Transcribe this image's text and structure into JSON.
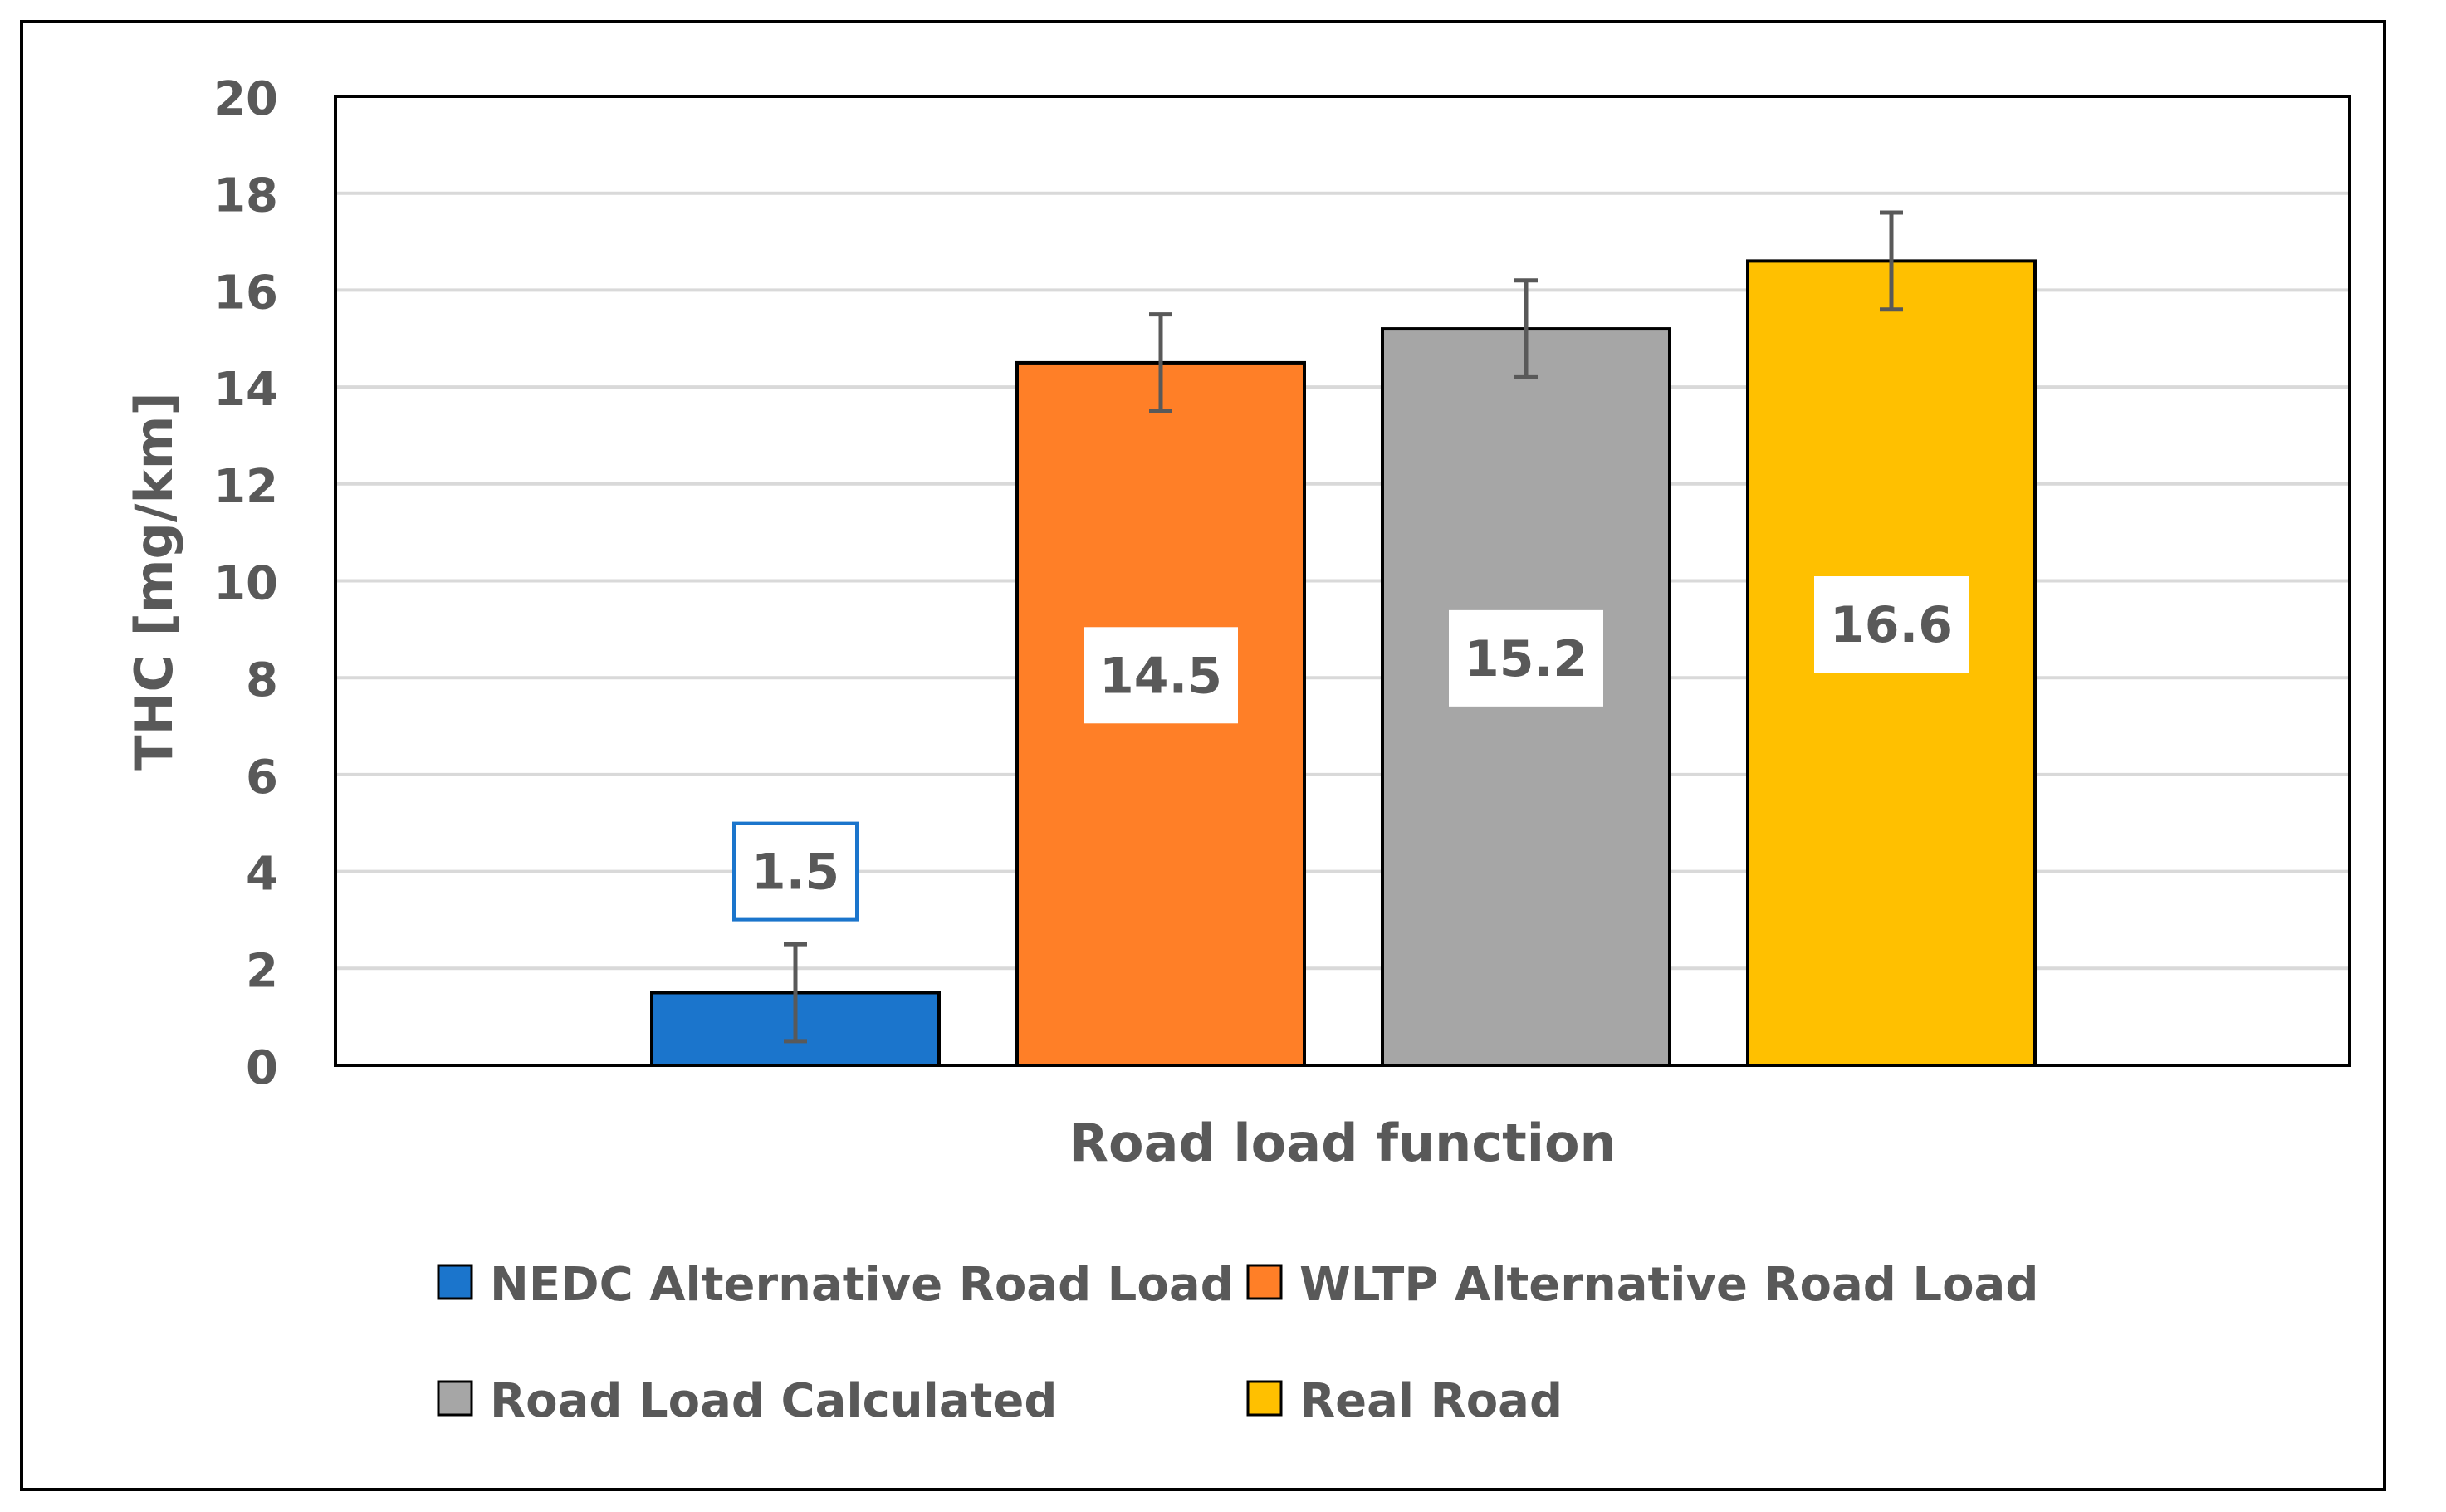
{
  "chart_data": {
    "type": "bar",
    "title": "",
    "xlabel": "Road load function",
    "ylabel": "THC [mg/km]",
    "ylim": [
      0,
      20
    ],
    "yticks": [
      0,
      2,
      4,
      6,
      8,
      10,
      12,
      14,
      16,
      18,
      20
    ],
    "grid": true,
    "legend_position": "bottom",
    "categories": [
      "Road load function"
    ],
    "series": [
      {
        "name": "NEDC Alternative Road Load",
        "values": [
          1.5
        ],
        "error": 1.0,
        "label": "1.5",
        "color": "#1b75cc"
      },
      {
        "name": "WLTP Alternative Road Load",
        "values": [
          14.5
        ],
        "error": 1.0,
        "label": "14.5",
        "color": "#ff7f27"
      },
      {
        "name": "Road Load Calculated",
        "values": [
          15.2
        ],
        "error": 1.0,
        "label": "15.2",
        "color": "#a6a6a6"
      },
      {
        "name": "Real Road",
        "values": [
          16.6
        ],
        "error": 1.0,
        "label": "16.6",
        "color": "#ffc000"
      }
    ]
  },
  "colors": {
    "text": "#595959",
    "gridline": "#d9d9d9",
    "error_bar": "#595959",
    "label_box_border_first": "#1b75cc"
  }
}
